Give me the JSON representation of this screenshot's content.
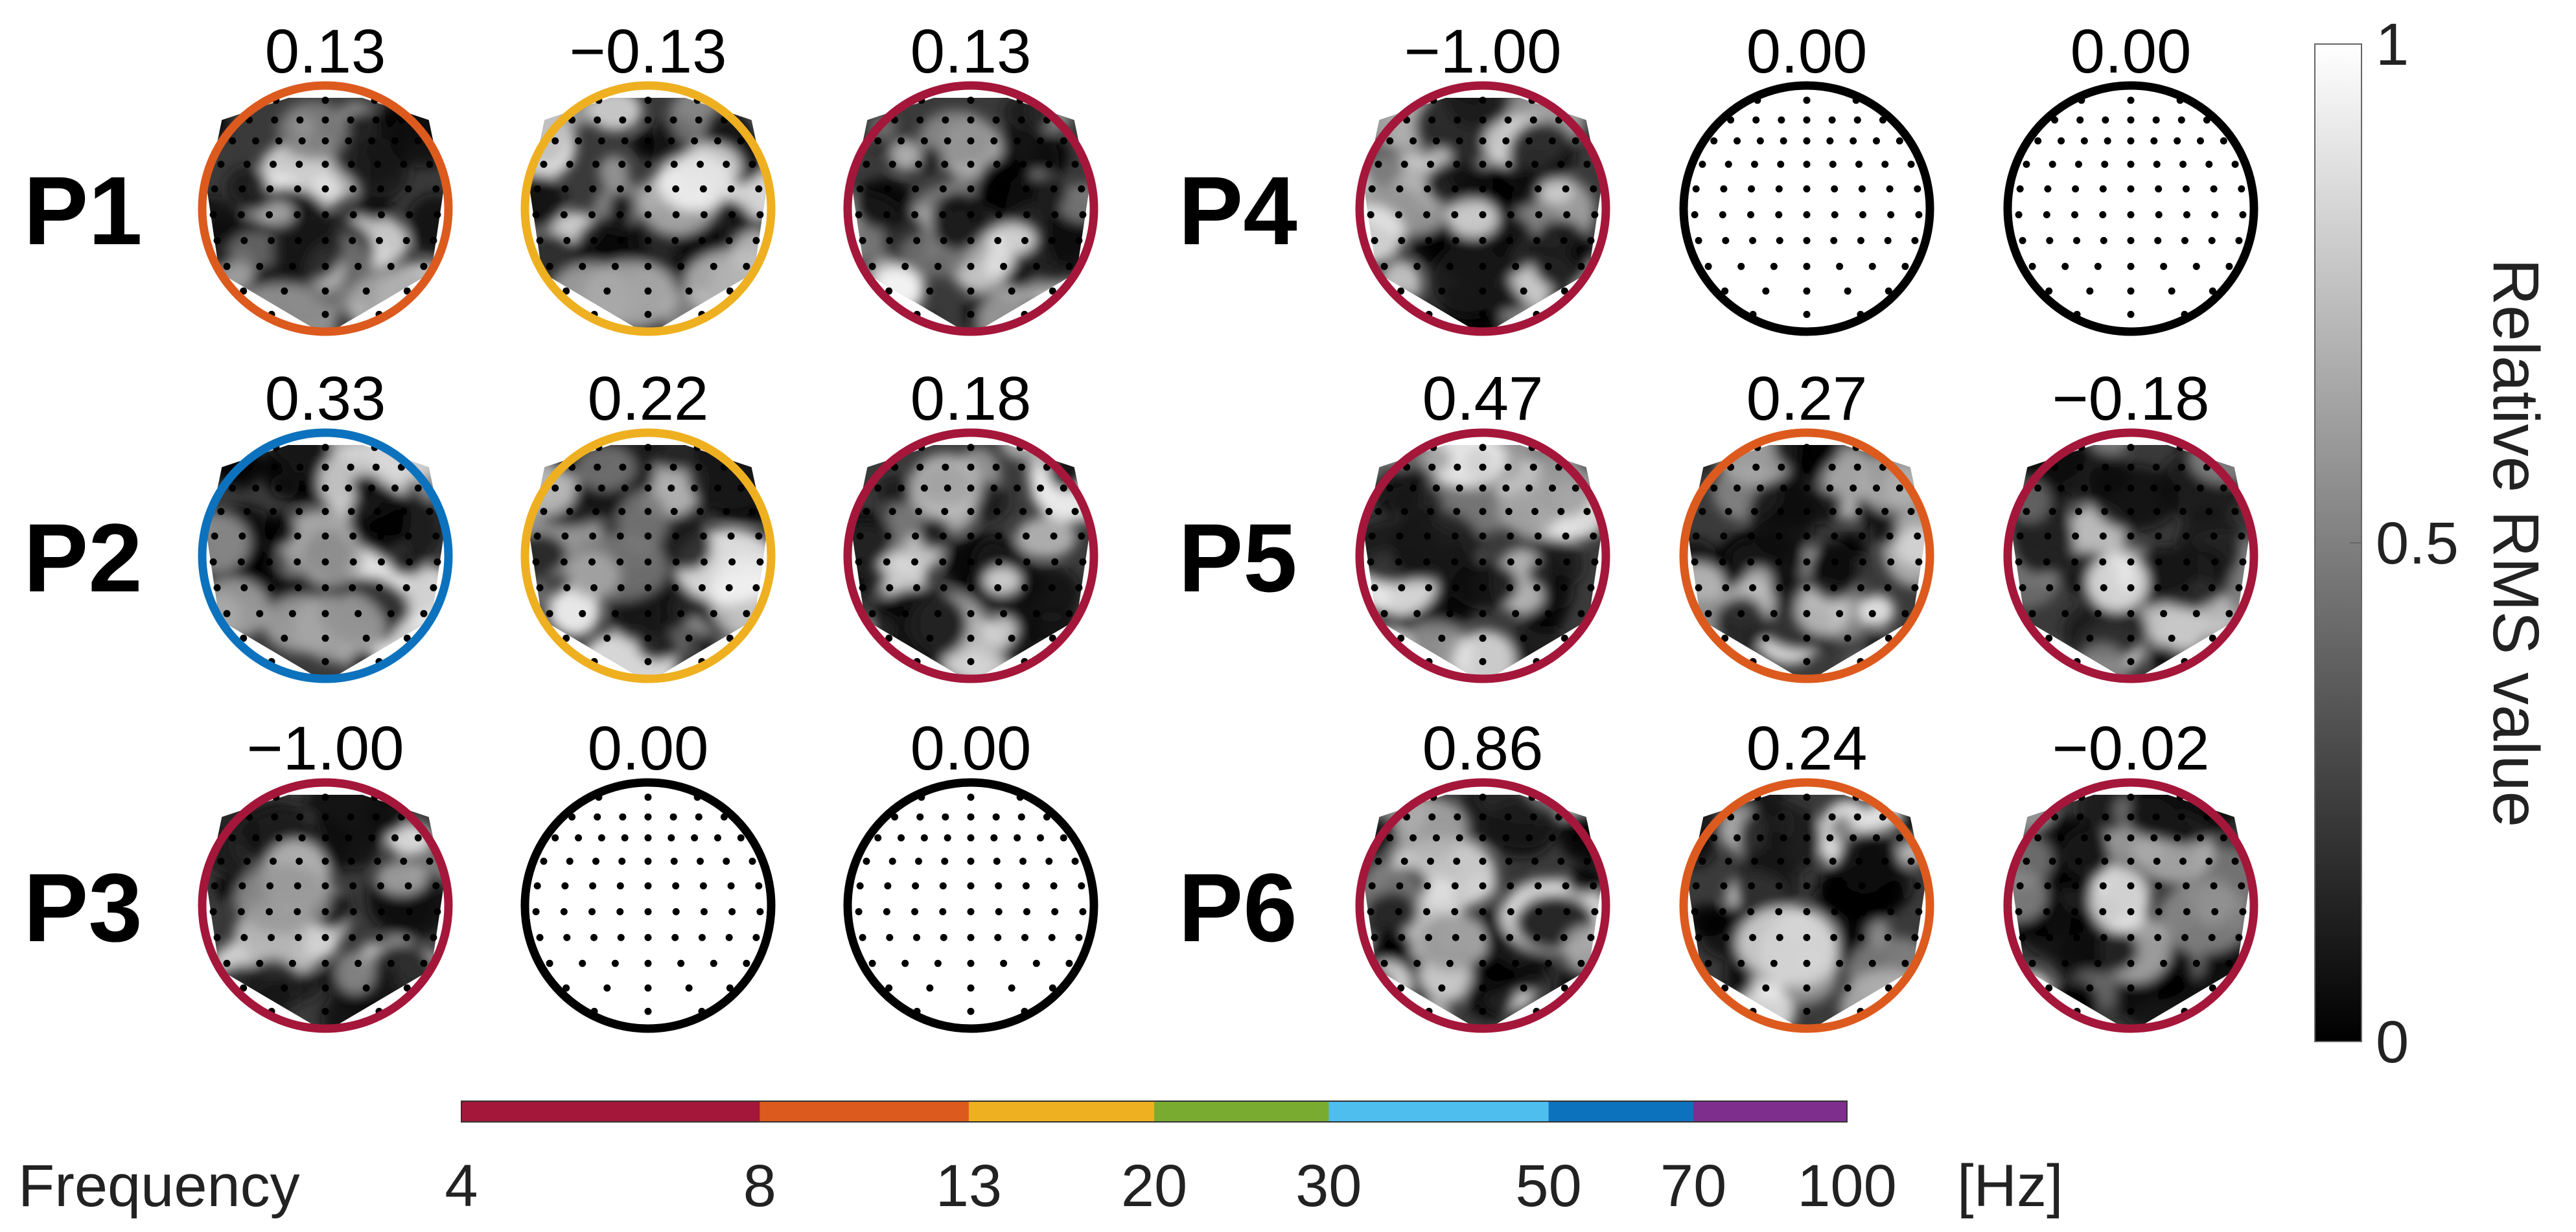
{
  "panels": [
    {
      "label": "P1",
      "maps": [
        {
          "value": "0.13",
          "band": "8-13"
        },
        {
          "value": "−0.13",
          "band": "13-20"
        },
        {
          "value": "0.13",
          "band": "4-8"
        }
      ]
    },
    {
      "label": "P2",
      "maps": [
        {
          "value": "0.33",
          "band": "50-70"
        },
        {
          "value": "0.22",
          "band": "13-20"
        },
        {
          "value": "0.18",
          "band": "4-8"
        }
      ]
    },
    {
      "label": "P3",
      "maps": [
        {
          "value": "−1.00",
          "band": "4-8"
        },
        {
          "value": "0.00",
          "band": "none"
        },
        {
          "value": "0.00",
          "band": "none"
        }
      ]
    },
    {
      "label": "P4",
      "maps": [
        {
          "value": "−1.00",
          "band": "4-8"
        },
        {
          "value": "0.00",
          "band": "none"
        },
        {
          "value": "0.00",
          "band": "none"
        }
      ]
    },
    {
      "label": "P5",
      "maps": [
        {
          "value": "0.47",
          "band": "4-8"
        },
        {
          "value": "0.27",
          "band": "8-13"
        },
        {
          "value": "−0.18",
          "band": "4-8"
        }
      ]
    },
    {
      "label": "P6",
      "maps": [
        {
          "value": "0.86",
          "band": "4-8"
        },
        {
          "value": "0.24",
          "band": "8-13"
        },
        {
          "value": "−0.02",
          "band": "4-8"
        }
      ]
    }
  ],
  "frequency_bar": {
    "label": "Frequency",
    "unit": "[Hz]",
    "ticks": [
      "4",
      "8",
      "13",
      "20",
      "30",
      "50",
      "70",
      "100"
    ],
    "bands": [
      {
        "range": "4-8",
        "color": "#a4173a"
      },
      {
        "range": "8-13",
        "color": "#dc5a1e"
      },
      {
        "range": "13-20",
        "color": "#eeb020"
      },
      {
        "range": "20-30",
        "color": "#78ab30"
      },
      {
        "range": "30-50",
        "color": "#4dbeee"
      },
      {
        "range": "50-70",
        "color": "#0d72bd"
      },
      {
        "range": "70-100",
        "color": "#7e2f8e"
      }
    ],
    "none_color": "#000000"
  },
  "colorbar": {
    "title": "Relative RMS value",
    "ticks": [
      "0",
      "0.5",
      "1"
    ],
    "min": 0,
    "max": 1,
    "colormap": "gray"
  }
}
